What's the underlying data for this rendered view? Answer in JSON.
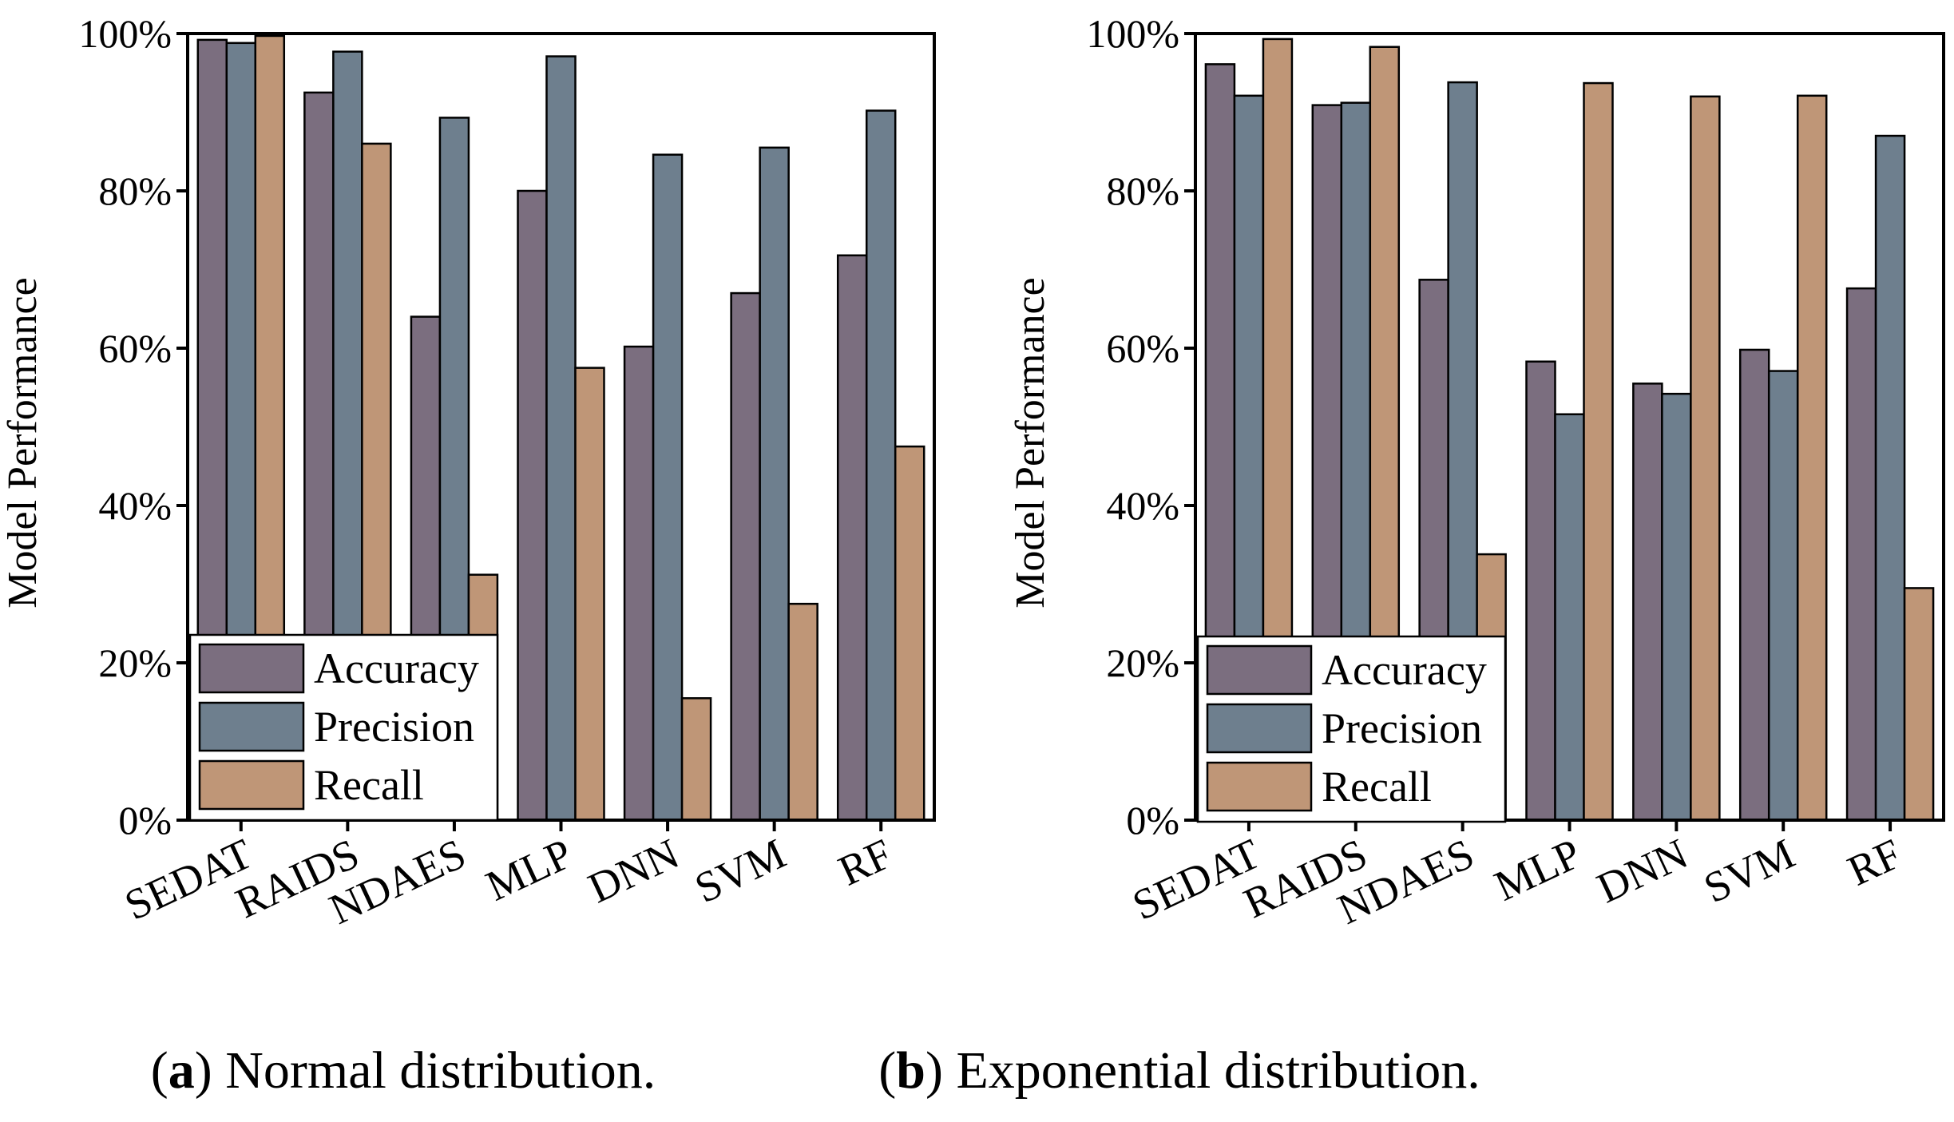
{
  "figure": {
    "colors": {
      "Accuracy": "#7b6e7f",
      "Precision": "#6e7f8e",
      "Recall": "#bf9677"
    }
  },
  "chart_data": [
    {
      "type": "bar",
      "letter": "a",
      "caption_text": " Normal distribution.",
      "ylabel": "Model Performance",
      "xlabel": "",
      "ylim": [
        0,
        100
      ],
      "yticks": [
        0,
        20,
        40,
        60,
        80,
        100
      ],
      "ytick_labels": [
        "0%",
        "20%",
        "40%",
        "60%",
        "80%",
        "100%"
      ],
      "categories": [
        "SEDAT",
        "RAIDS",
        "NDAES",
        "MLP",
        "DNN",
        "SVM",
        "RF"
      ],
      "legend_position": "bottom-left",
      "series": [
        {
          "name": "Accuracy",
          "values": [
            99.2,
            92.5,
            64.0,
            80.0,
            60.2,
            67.0,
            71.8
          ]
        },
        {
          "name": "Precision",
          "values": [
            98.8,
            97.7,
            89.3,
            97.1,
            84.6,
            85.5,
            90.2
          ]
        },
        {
          "name": "Recall",
          "values": [
            99.7,
            86.0,
            31.2,
            57.5,
            15.5,
            27.5,
            47.5
          ]
        }
      ]
    },
    {
      "type": "bar",
      "letter": "b",
      "caption_text": " Exponential distribution.",
      "ylabel": "Model Performance",
      "xlabel": "",
      "ylim": [
        0,
        100
      ],
      "yticks": [
        0,
        20,
        40,
        60,
        80,
        100
      ],
      "ytick_labels": [
        "0%",
        "20%",
        "40%",
        "60%",
        "80%",
        "100%"
      ],
      "categories": [
        "SEDAT",
        "RAIDS",
        "NDAES",
        "MLP",
        "DNN",
        "SVM",
        "RF"
      ],
      "legend_position": "bottom-left",
      "series": [
        {
          "name": "Accuracy",
          "values": [
            96.1,
            90.9,
            68.7,
            58.3,
            55.5,
            59.8,
            67.6
          ]
        },
        {
          "name": "Precision",
          "values": [
            92.1,
            91.2,
            93.8,
            51.6,
            54.2,
            57.1,
            87.0
          ]
        },
        {
          "name": "Recall",
          "values": [
            99.3,
            98.3,
            33.8,
            93.7,
            92.0,
            92.1,
            29.5
          ]
        }
      ]
    }
  ]
}
